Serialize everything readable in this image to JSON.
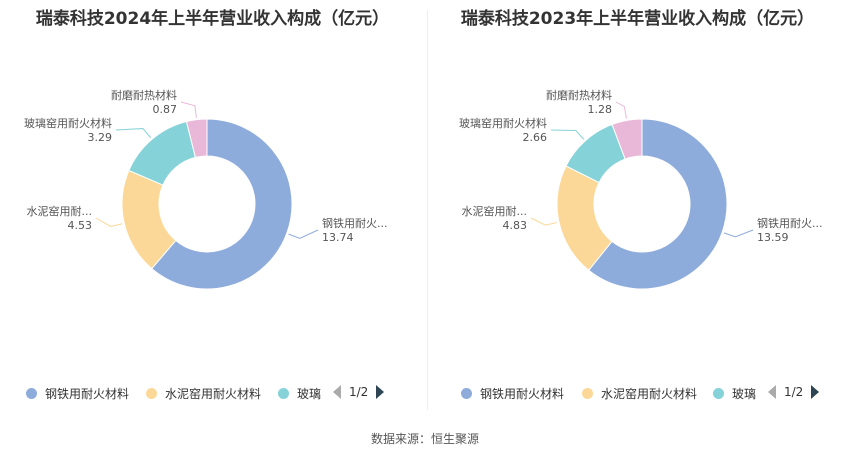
{
  "source": "数据来源：恒生聚源",
  "legend_items": [
    "钢铁用耐火材料",
    "水泥窑用耐火材料",
    "玻璃"
  ],
  "pager": "1/2",
  "chart_data": [
    {
      "type": "pie",
      "title": "瑞泰科技2024年上半年营业收入构成（亿元）",
      "slices": [
        {
          "label": "钢铁用耐火...",
          "name": "钢铁用耐火材料",
          "value": 13.74,
          "color": "#8eacdb"
        },
        {
          "label": "水泥窑用耐...",
          "name": "水泥窑用耐火材料",
          "value": 4.53,
          "color": "#fcd898"
        },
        {
          "label": "玻璃窑用耐火材料",
          "name": "玻璃窑用耐火材料",
          "value": 3.29,
          "color": "#85d2d8"
        },
        {
          "label": "耐磨耐热材料",
          "name": "耐磨耐热材料",
          "value": 0.87,
          "color": "#e9b8d8"
        }
      ]
    },
    {
      "type": "pie",
      "title": "瑞泰科技2023年上半年营业收入构成（亿元）",
      "slices": [
        {
          "label": "钢铁用耐火...",
          "name": "钢铁用耐火材料",
          "value": 13.59,
          "color": "#8eacdb"
        },
        {
          "label": "水泥窑用耐...",
          "name": "水泥窑用耐火材料",
          "value": 4.83,
          "color": "#fcd898"
        },
        {
          "label": "玻璃窑用耐火材料",
          "name": "玻璃窑用耐火材料",
          "value": 2.66,
          "color": "#85d2d8"
        },
        {
          "label": "耐磨耐热材料",
          "name": "耐磨耐热材料",
          "value": 1.28,
          "color": "#e9b8d8"
        }
      ]
    }
  ]
}
